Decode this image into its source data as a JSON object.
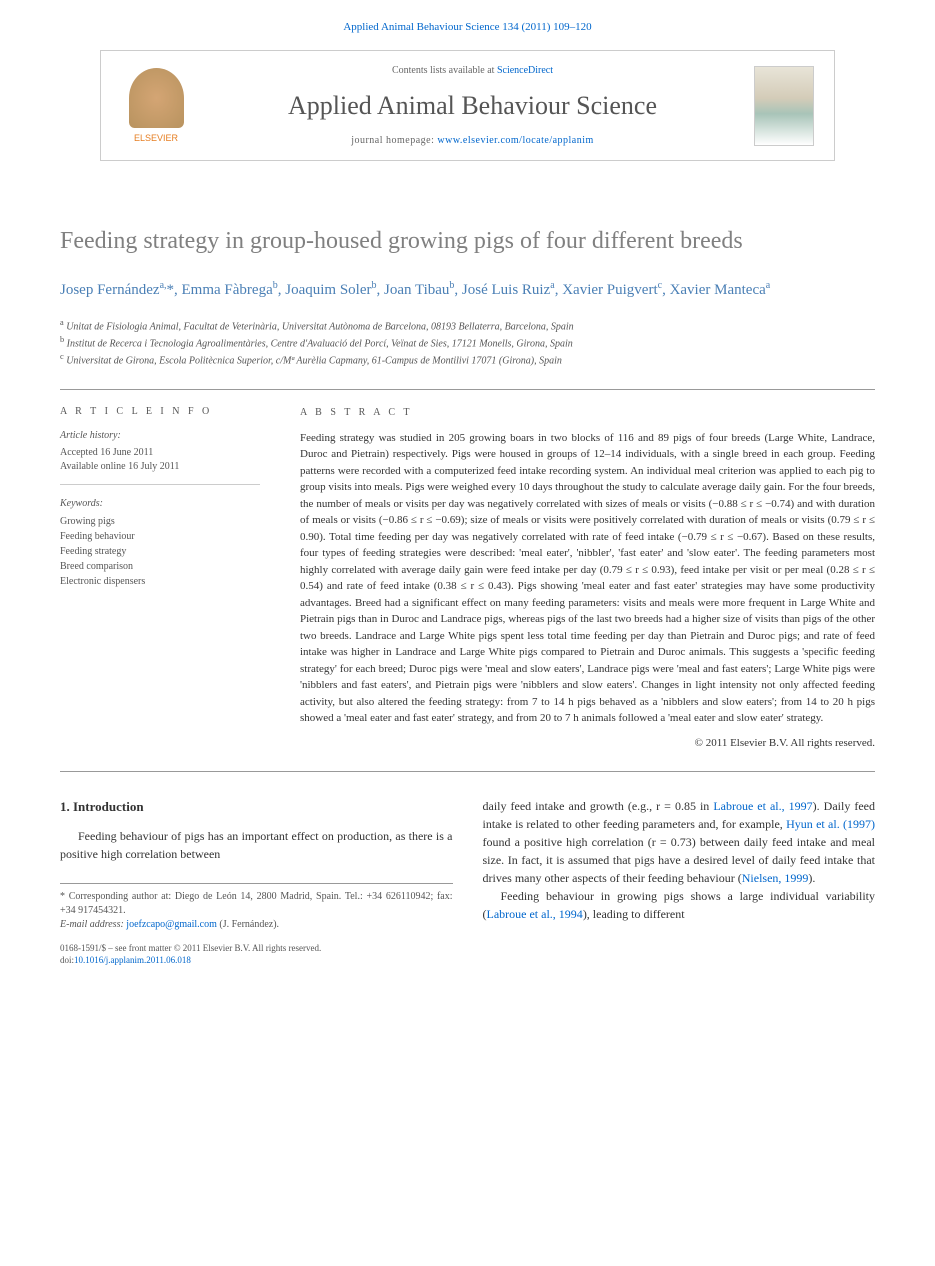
{
  "header": {
    "journal_ref_prefix": "Applied Animal Behaviour Science 134 (2011) 109–120",
    "contents_text": "Contents lists available at ",
    "contents_link": "ScienceDirect",
    "journal_title": "Applied Animal Behaviour Science",
    "homepage_label": "journal homepage: ",
    "homepage_url": "www.elsevier.com/locate/applanim",
    "elsevier_label": "ELSEVIER"
  },
  "article": {
    "title": "Feeding strategy in group-housed growing pigs of four different breeds",
    "authors_html": "Josep Fernández<sup>a,</sup>*, Emma Fàbrega<sup>b</sup>, Joaquim Soler<sup>b</sup>, Joan Tibau<sup>b</sup>, José Luis Ruiz<sup>a</sup>, Xavier Puigvert<sup>c</sup>, Xavier Manteca<sup>a</sup>",
    "affiliations": {
      "a": "Unitat de Fisiologia Animal, Facultat de Veterinària, Universitat Autònoma de Barcelona, 08193 Bellaterra, Barcelona, Spain",
      "b": "Institut de Recerca i Tecnologia Agroalimentàries, Centre d'Avaluació del Porcí, Veïnat de Sies, 17121 Monells, Girona, Spain",
      "c": "Universitat de Girona, Escola Politècnica Superior, c/Mª Aurèlia Capmany, 61-Campus de Montilivi 17071 (Girona), Spain"
    }
  },
  "info": {
    "heading": "A R T I C L E   I N F O",
    "history_label": "Article history:",
    "accepted": "Accepted 16 June 2011",
    "online": "Available online 16 July 2011",
    "keywords_label": "Keywords:",
    "keywords": [
      "Growing pigs",
      "Feeding behaviour",
      "Feeding strategy",
      "Breed comparison",
      "Electronic dispensers"
    ]
  },
  "abstract": {
    "heading": "A B S T R A C T",
    "text": "Feeding strategy was studied in 205 growing boars in two blocks of 116 and 89 pigs of four breeds (Large White, Landrace, Duroc and Pietrain) respectively. Pigs were housed in groups of 12–14 individuals, with a single breed in each group. Feeding patterns were recorded with a computerized feed intake recording system. An individual meal criterion was applied to each pig to group visits into meals. Pigs were weighed every 10 days throughout the study to calculate average daily gain. For the four breeds, the number of meals or visits per day was negatively correlated with sizes of meals or visits (−0.88 ≤ r ≤ −0.74) and with duration of meals or visits (−0.86 ≤ r ≤ −0.69); size of meals or visits were positively correlated with duration of meals or visits (0.79 ≤ r ≤ 0.90). Total time feeding per day was negatively correlated with rate of feed intake (−0.79 ≤ r ≤ −0.67). Based on these results, four types of feeding strategies were described: 'meal eater', 'nibbler', 'fast eater' and 'slow eater'. The feeding parameters most highly correlated with average daily gain were feed intake per day (0.79 ≤ r ≤ 0.93), feed intake per visit or per meal (0.28 ≤ r ≤ 0.54) and rate of feed intake (0.38 ≤ r ≤ 0.43). Pigs showing 'meal eater and fast eater' strategies may have some productivity advantages. Breed had a significant effect on many feeding parameters: visits and meals were more frequent in Large White and Pietrain pigs than in Duroc and Landrace pigs, whereas pigs of the last two breeds had a higher size of visits than pigs of the other two breeds. Landrace and Large White pigs spent less total time feeding per day than Pietrain and Duroc pigs; and rate of feed intake was higher in Landrace and Large White pigs compared to Pietrain and Duroc animals. This suggests a 'specific feeding strategy' for each breed; Duroc pigs were 'meal and slow eaters', Landrace pigs were 'meal and fast eaters'; Large White pigs were 'nibblers and fast eaters', and Pietrain pigs were 'nibblers and slow eaters'. Changes in light intensity not only affected feeding activity, but also altered the feeding strategy: from 7 to 14 h pigs behaved as a 'nibblers and slow eaters'; from 14 to 20 h pigs showed a 'meal eater and fast eater' strategy, and from 20 to 7 h animals followed a 'meal eater and slow eater' strategy.",
    "copyright": "© 2011 Elsevier B.V. All rights reserved."
  },
  "section1": {
    "heading": "1.  Introduction",
    "col1_p1": "Feeding behaviour of pigs has an important effect on production, as there is a positive high correlation between",
    "col2_p1_pre": "daily feed intake and growth (e.g., r = 0.85 in ",
    "col2_p1_link1": "Labroue et al., 1997",
    "col2_p1_mid1": "). Daily feed intake is related to other feeding parameters and, for example, ",
    "col2_p1_link2": "Hyun et al. (1997)",
    "col2_p1_mid2": " found a positive high correlation (r = 0.73) between daily feed intake and meal size. In fact, it is assumed that pigs have a desired level of daily feed intake that drives many other aspects of their feeding behaviour (",
    "col2_p1_link3": "Nielsen, 1999",
    "col2_p1_end": ").",
    "col2_p2_pre": "Feeding behaviour in growing pigs shows a large individual variability (",
    "col2_p2_link": "Labroue et al., 1994",
    "col2_p2_end": "), leading to different"
  },
  "footnotes": {
    "corr_label": "* Corresponding author at: Diego de León 14, 2800 Madrid, Spain. Tel.: +34 626110942; fax: +34 917454321.",
    "email_label": "E-mail address: ",
    "email": "joefzcapo@gmail.com",
    "email_who": " (J. Fernández)."
  },
  "footer": {
    "issn": "0168-1591/$ – see front matter © 2011 Elsevier B.V. All rights reserved.",
    "doi_label": "doi:",
    "doi": "10.1016/j.applanim.2011.06.018"
  },
  "colors": {
    "link": "#0066cc",
    "author": "#4a7fb5",
    "title_gray": "#808080",
    "text": "#333333",
    "muted": "#555555"
  }
}
